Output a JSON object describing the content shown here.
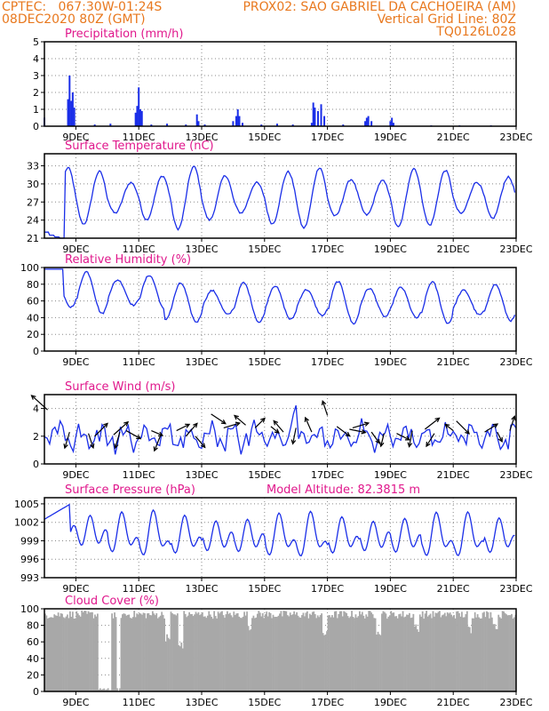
{
  "header": {
    "line1_left": "CPTEC:   067:30W-01:24S",
    "line1_right": "PROX02: SAO GABRIEL DA CACHOEIRA (AM)",
    "line2_left": "08DEC2020 80Z (GMT)",
    "line2_right": "Vertical Grid Line: 80Z",
    "line3_right": "TQ0126L028"
  },
  "colors": {
    "header": "#e8781e",
    "title": "#e0188c",
    "series": "#1a2ee8",
    "cloud": "#a8a8a8",
    "grid": "#888888"
  },
  "x_axis": {
    "range": [
      8,
      23
    ],
    "tick_days": [
      9,
      11,
      13,
      15,
      17,
      19,
      21,
      23
    ],
    "tick_labels": [
      "9DEC",
      "11DEC",
      "13DEC",
      "15DEC",
      "17DEC",
      "19DEC",
      "21DEC",
      "23DEC"
    ]
  },
  "chart_data": [
    {
      "type": "bar",
      "title": "Precipitation (mm/h)",
      "ylim": [
        0,
        5
      ],
      "yticks": [
        0,
        1,
        2,
        3,
        4,
        5
      ],
      "xlabel": "",
      "ylabel": "",
      "bars": [
        [
          8.0,
          0.5
        ],
        [
          8.75,
          1.6
        ],
        [
          8.8,
          3.0
        ],
        [
          8.85,
          1.5
        ],
        [
          8.9,
          2.0
        ],
        [
          8.95,
          1.1
        ],
        [
          9.6,
          0.1
        ],
        [
          10.1,
          0.15
        ],
        [
          10.9,
          0.8
        ],
        [
          10.95,
          1.2
        ],
        [
          11.0,
          2.3
        ],
        [
          11.05,
          1.0
        ],
        [
          11.1,
          0.9
        ],
        [
          11.4,
          0.1
        ],
        [
          11.9,
          0.15
        ],
        [
          12.5,
          0.1
        ],
        [
          12.85,
          0.7
        ],
        [
          12.9,
          0.3
        ],
        [
          13.1,
          0.1
        ],
        [
          14.0,
          0.3
        ],
        [
          14.1,
          0.6
        ],
        [
          14.15,
          1.0
        ],
        [
          14.2,
          0.6
        ],
        [
          14.3,
          0.2
        ],
        [
          14.9,
          0.1
        ],
        [
          15.4,
          0.15
        ],
        [
          15.9,
          0.1
        ],
        [
          16.5,
          0.2
        ],
        [
          16.55,
          1.4
        ],
        [
          16.6,
          1.1
        ],
        [
          16.7,
          0.9
        ],
        [
          16.8,
          1.3
        ],
        [
          16.9,
          0.6
        ],
        [
          17.5,
          0.1
        ],
        [
          18.2,
          0.3
        ],
        [
          18.25,
          0.5
        ],
        [
          18.3,
          0.6
        ],
        [
          18.4,
          0.3
        ],
        [
          19.0,
          0.3
        ],
        [
          19.05,
          0.5
        ],
        [
          19.1,
          0.2
        ],
        [
          20.3,
          0.05
        ],
        [
          21.2,
          0.05
        ],
        [
          22.2,
          0.05
        ]
      ]
    },
    {
      "type": "line",
      "title": "Surface Temperature (nC)",
      "ylim": [
        21,
        35
      ],
      "yticks": [
        21,
        24,
        27,
        30,
        33
      ],
      "xlabel": "",
      "ylabel": "",
      "series": [
        {
          "name": "Surface Temperature",
          "amplitude": 4.5,
          "mean": 27.7,
          "peak_hour": 18,
          "start_values": [
            22.0,
            21.5,
            21.2,
            21.0
          ]
        }
      ]
    },
    {
      "type": "line",
      "title": "Relative Humidity (%)",
      "ylim": [
        0,
        100
      ],
      "yticks": [
        0,
        20,
        40,
        60,
        80,
        100
      ],
      "xlabel": "",
      "ylabel": "",
      "series": [
        {
          "name": "Relative Humidity",
          "amplitude": 22,
          "mean": 58,
          "peak_hour": 8
        }
      ]
    },
    {
      "type": "line",
      "title": "Surface Wind (m/s)",
      "ylim": [
        0,
        5
      ],
      "yticks": [
        0,
        2,
        4
      ],
      "xlabel": "",
      "ylabel": "",
      "series": [
        {
          "name": "Wind Speed",
          "mean": 2.0,
          "spread": 1.0
        }
      ],
      "vectors": [
        [
          8.1,
          3.9,
          -1.0,
          0.9
        ],
        [
          8.8,
          2.3,
          -0.3,
          -1.0
        ],
        [
          9.4,
          2.2,
          0.3,
          -0.9
        ],
        [
          9.6,
          2.0,
          0.8,
          0.8
        ],
        [
          10.2,
          2.1,
          0.9,
          0.8
        ],
        [
          10.4,
          2.3,
          -0.3,
          -1.0
        ],
        [
          10.6,
          2.4,
          0.9,
          -0.5
        ],
        [
          11.4,
          2.4,
          0.7,
          -0.3
        ],
        [
          11.7,
          2.1,
          -0.4,
          -1.0
        ],
        [
          12.2,
          2.4,
          0.8,
          0.4
        ],
        [
          12.5,
          2.0,
          0.7,
          0.8
        ],
        [
          12.8,
          2.0,
          0.6,
          -0.7
        ],
        [
          13.3,
          3.6,
          0.9,
          -0.6
        ],
        [
          13.7,
          2.6,
          1.0,
          0.3
        ],
        [
          14.4,
          2.8,
          -0.7,
          0.6
        ],
        [
          14.7,
          2.6,
          0.6,
          0.6
        ],
        [
          15.2,
          2.7,
          0.5,
          -0.4
        ],
        [
          15.6,
          2.3,
          -0.6,
          0.7
        ],
        [
          16.0,
          2.6,
          -0.2,
          -1.0
        ],
        [
          16.5,
          2.3,
          -0.4,
          0.9
        ],
        [
          17.0,
          3.5,
          -0.3,
          0.9
        ],
        [
          17.3,
          2.7,
          0.8,
          -0.6
        ],
        [
          17.7,
          2.5,
          1.0,
          -0.2
        ],
        [
          17.8,
          2.6,
          1.0,
          0.3
        ],
        [
          18.4,
          2.3,
          0.5,
          -0.7
        ],
        [
          18.8,
          2.2,
          -0.2,
          -0.8
        ],
        [
          19.2,
          2.2,
          0.8,
          -0.4
        ],
        [
          19.7,
          2.4,
          -0.2,
          -1.0
        ],
        [
          20.1,
          2.5,
          0.9,
          0.7
        ],
        [
          20.4,
          2.2,
          -0.5,
          -0.8
        ],
        [
          21.0,
          2.4,
          -0.5,
          0.4
        ],
        [
          21.1,
          3.1,
          0.8,
          -0.8
        ],
        [
          22.0,
          2.3,
          0.8,
          0.5
        ],
        [
          22.4,
          2.3,
          0.3,
          -0.6
        ],
        [
          22.8,
          2.4,
          0.3,
          0.9
        ]
      ]
    },
    {
      "type": "line",
      "title": "Surface Pressure (hPa)",
      "annotation": "Model Altitude: 82.3815 m",
      "ylim": [
        993,
        1006
      ],
      "yticks": [
        993,
        996,
        999,
        1002,
        1005
      ],
      "xlabel": "",
      "ylabel": "",
      "series": [
        {
          "name": "Surface Pressure",
          "mean": 999.5,
          "amplitude": 2.2,
          "semi_amplitude": 1.8,
          "trend_start": 2.5
        }
      ]
    },
    {
      "type": "bar",
      "title": "Cloud Cover (%)",
      "ylim": [
        0,
        100
      ],
      "yticks": [
        0,
        20,
        40,
        60,
        80,
        100
      ],
      "xlabel": "",
      "ylabel": "",
      "series": [
        {
          "name": "Cloud Cover",
          "mean": 93,
          "clear_spans": [
            [
              9.7,
              10.1
            ],
            [
              10.25,
              10.4
            ]
          ],
          "dips": [
            [
              11.9,
              60
            ],
            [
              12.3,
              50
            ],
            [
              14.5,
              70
            ],
            [
              16.9,
              65
            ],
            [
              18.6,
              68
            ],
            [
              19.8,
              72
            ],
            [
              21.5,
              70
            ],
            [
              22.3,
              75
            ]
          ]
        }
      ]
    }
  ]
}
